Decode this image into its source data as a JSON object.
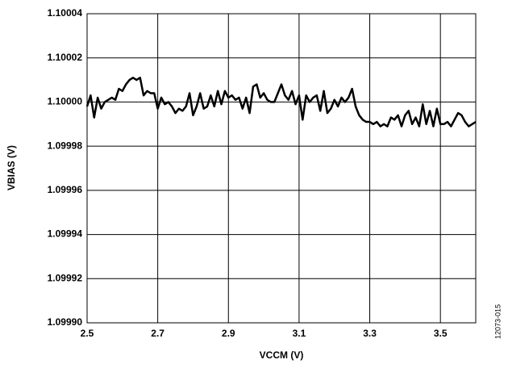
{
  "chart_data": {
    "type": "line",
    "x_label": "VCCM (V)",
    "y_label": "VBIAS (V)",
    "note": "12073-015",
    "xlim": [
      2.5,
      3.6
    ],
    "xticks": [
      2.5,
      2.7,
      2.9,
      3.1,
      3.3,
      3.5
    ],
    "ylim": [
      1.0999,
      1.10004
    ],
    "yticks": [
      {
        "value": 1.0999,
        "label": "1.09990"
      },
      1.09992,
      1.09994,
      1.09996,
      1.09998,
      {
        "value": 1.1,
        "label": "1.10000"
      },
      1.10002,
      1.10004
    ],
    "grid": true,
    "x": [
      2.5,
      2.51,
      2.52,
      2.53,
      2.54,
      2.55,
      2.56,
      2.57,
      2.58,
      2.59,
      2.6,
      2.61,
      2.62,
      2.63,
      2.64,
      2.65,
      2.66,
      2.67,
      2.68,
      2.69,
      2.7,
      2.71,
      2.72,
      2.73,
      2.74,
      2.75,
      2.76,
      2.77,
      2.78,
      2.79,
      2.8,
      2.81,
      2.82,
      2.83,
      2.84,
      2.85,
      2.86,
      2.87,
      2.88,
      2.89,
      2.9,
      2.91,
      2.92,
      2.93,
      2.94,
      2.95,
      2.96,
      2.97,
      2.98,
      2.99,
      3.0,
      3.01,
      3.02,
      3.03,
      3.04,
      3.05,
      3.06,
      3.07,
      3.08,
      3.09,
      3.1,
      3.11,
      3.12,
      3.13,
      3.14,
      3.15,
      3.16,
      3.17,
      3.18,
      3.19,
      3.2,
      3.21,
      3.22,
      3.23,
      3.24,
      3.25,
      3.26,
      3.27,
      3.28,
      3.29,
      3.3,
      3.31,
      3.32,
      3.33,
      3.34,
      3.35,
      3.36,
      3.37,
      3.38,
      3.39,
      3.4,
      3.41,
      3.42,
      3.43,
      3.44,
      3.45,
      3.46,
      3.47,
      3.48,
      3.49,
      3.5,
      3.51,
      3.52,
      3.53,
      3.54,
      3.55,
      3.56,
      3.57,
      3.58,
      3.59,
      3.6
    ],
    "series": [
      {
        "color": "#000000",
        "values": [
          1.099998,
          1.100003,
          1.099993,
          1.100002,
          1.099997,
          1.1,
          1.100001,
          1.100002,
          1.100001,
          1.100006,
          1.100005,
          1.100008,
          1.10001,
          1.100011,
          1.10001,
          1.100011,
          1.100003,
          1.100005,
          1.100004,
          1.100004,
          1.099997,
          1.100002,
          1.099999,
          1.1,
          1.099998,
          1.099995,
          1.099997,
          1.099996,
          1.099998,
          1.100004,
          1.099994,
          1.099998,
          1.100004,
          1.099997,
          1.099998,
          1.100003,
          1.099998,
          1.100005,
          1.099999,
          1.100005,
          1.100002,
          1.100003,
          1.100001,
          1.100002,
          1.099997,
          1.100002,
          1.099995,
          1.100007,
          1.100008,
          1.100002,
          1.100004,
          1.100001,
          1.1,
          1.1,
          1.100004,
          1.100008,
          1.100003,
          1.100001,
          1.100005,
          1.099999,
          1.100003,
          1.099992,
          1.100003,
          1.1,
          1.100002,
          1.100003,
          1.099996,
          1.100005,
          1.099995,
          1.099997,
          1.100001,
          1.099998,
          1.100002,
          1.1,
          1.100002,
          1.100006,
          1.099998,
          1.099994,
          1.099992,
          1.099991,
          1.099991,
          1.09999,
          1.099991,
          1.099989,
          1.09999,
          1.099989,
          1.099993,
          1.099992,
          1.099994,
          1.099989,
          1.099994,
          1.099996,
          1.09999,
          1.099993,
          1.099989,
          1.099999,
          1.09999,
          1.099996,
          1.099989,
          1.099997,
          1.09999,
          1.09999,
          1.099991,
          1.099989,
          1.099992,
          1.099995,
          1.099994,
          1.099991,
          1.099989,
          1.09999,
          1.099991
        ]
      }
    ]
  }
}
